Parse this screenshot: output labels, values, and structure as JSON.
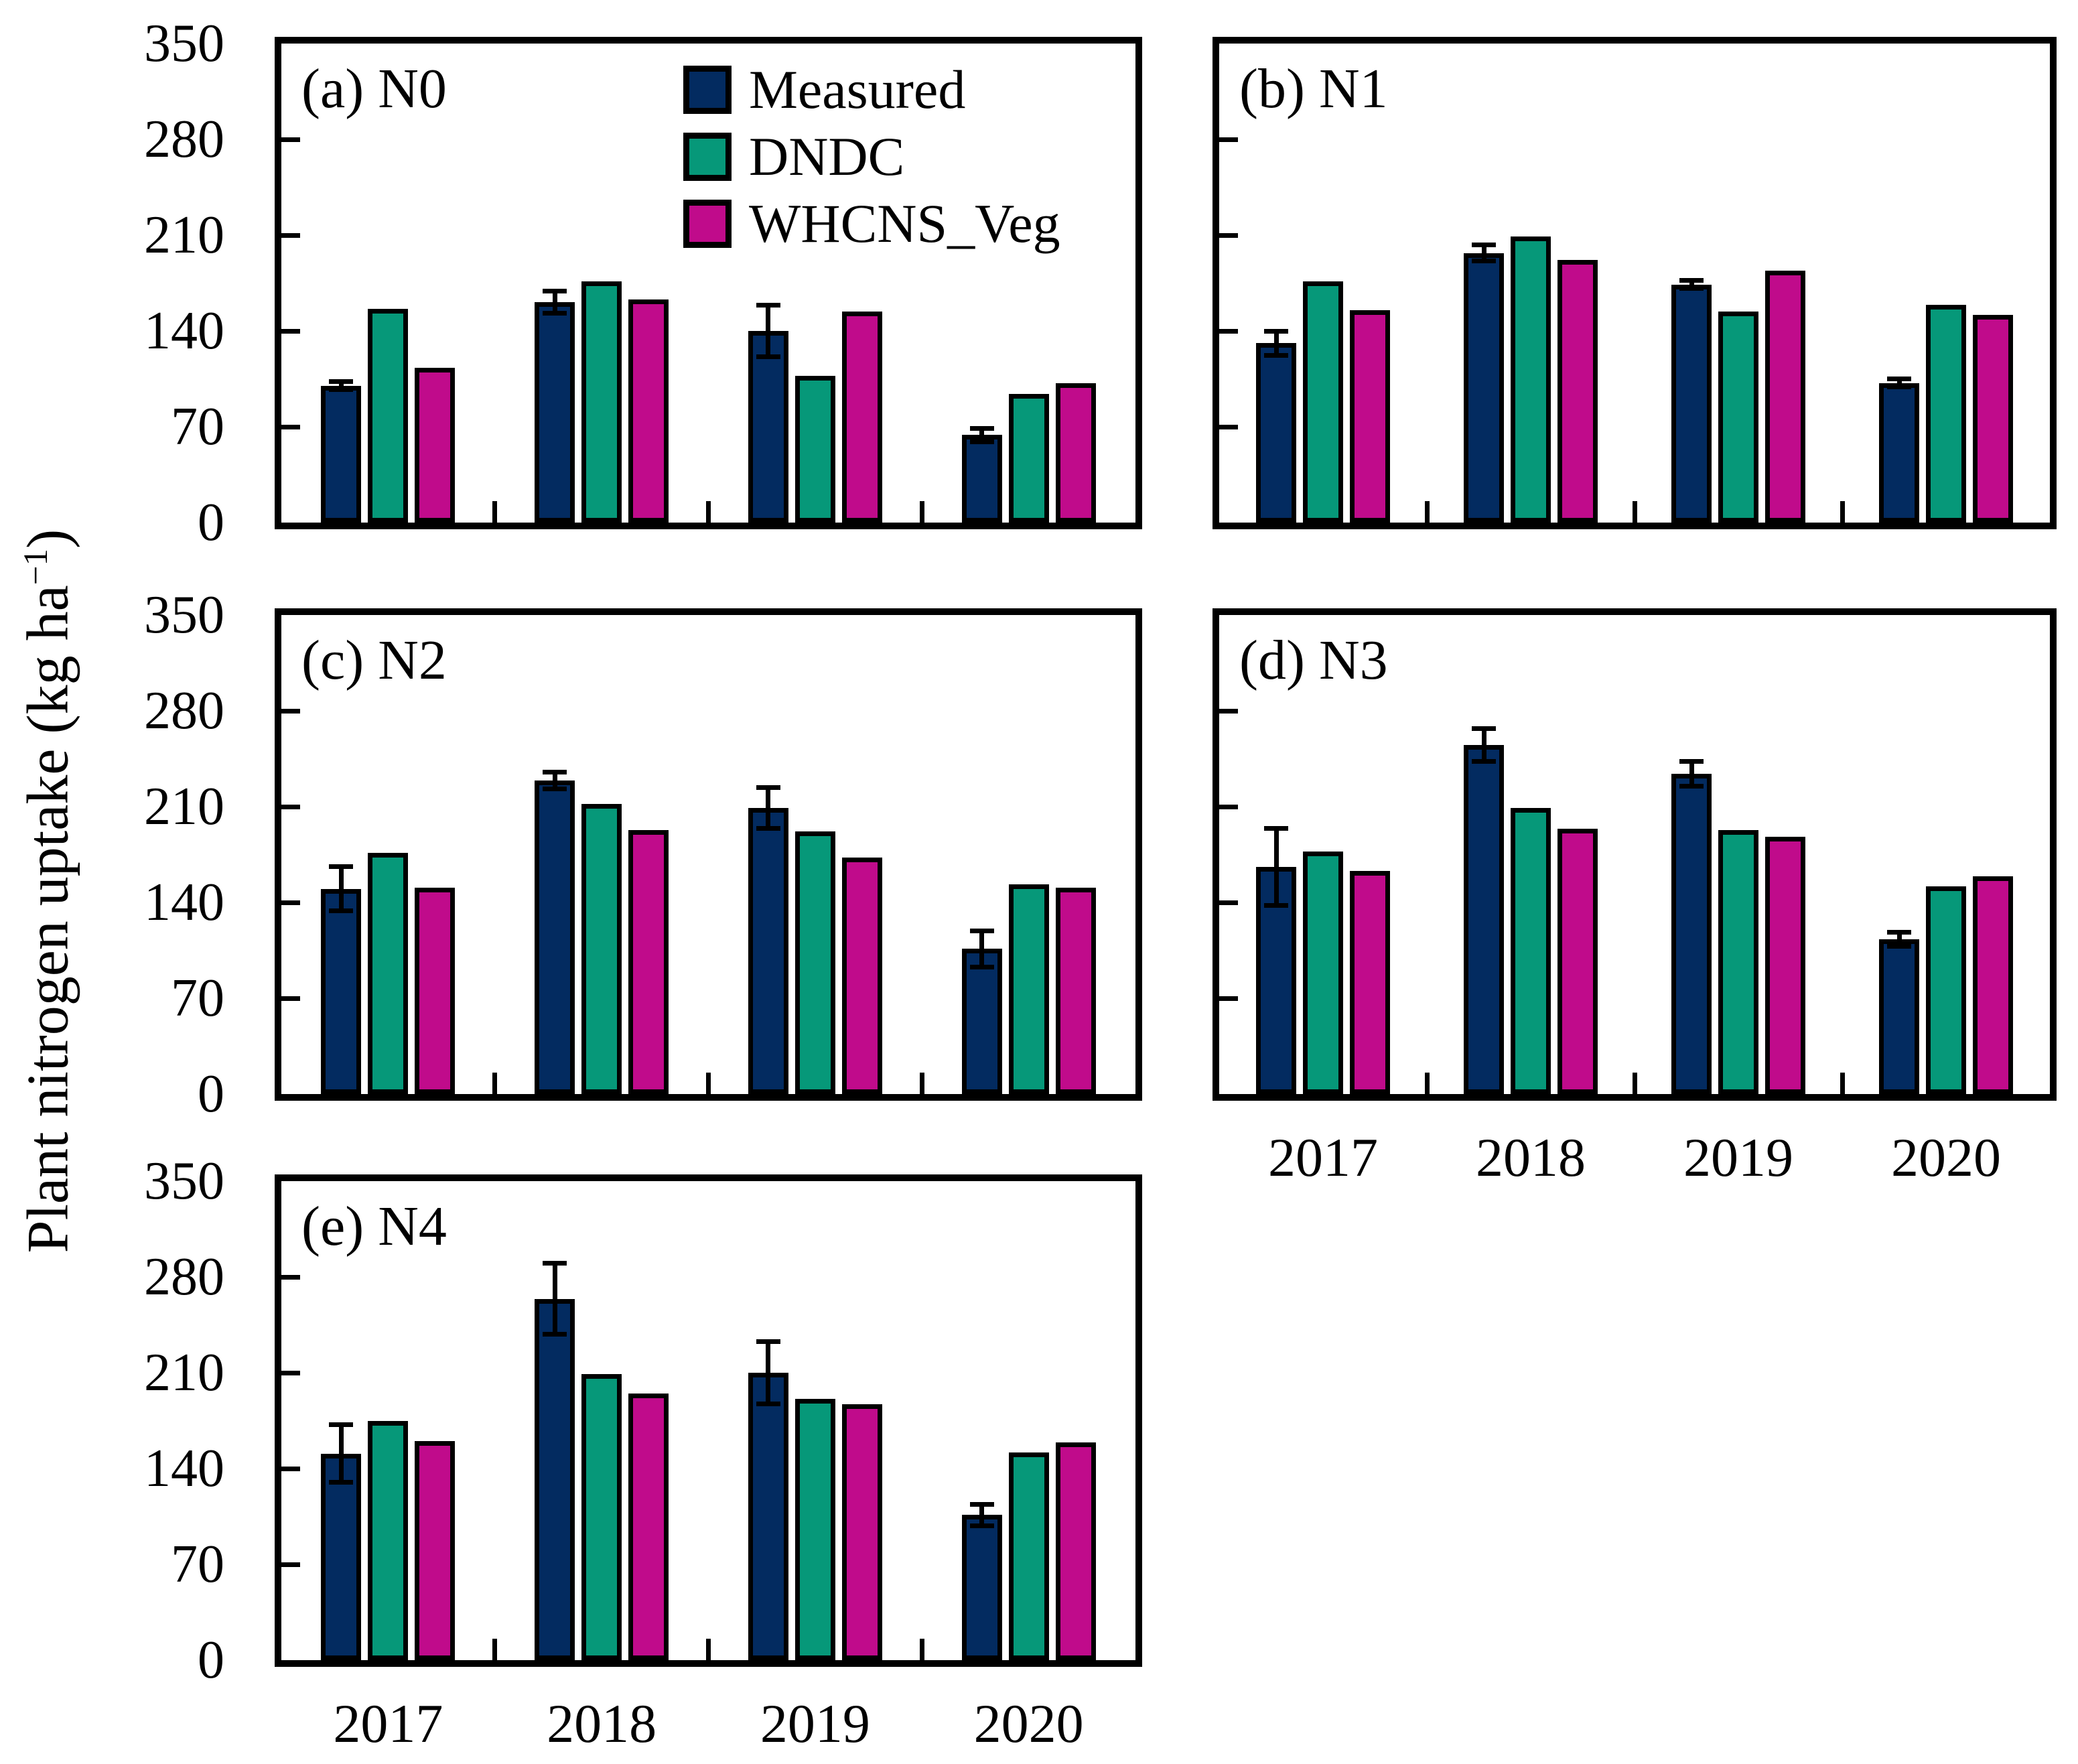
{
  "chart_data": {
    "type": "bar",
    "title": "",
    "categories": [
      "2017",
      "2018",
      "2019",
      "2020"
    ],
    "ylabel": {
      "prefix": "Plant nitrogen uptake (kg ha",
      "sup": "−1",
      "suffix": ")"
    },
    "ylim": [
      0,
      350
    ],
    "yticks": [
      0,
      70,
      140,
      210,
      280,
      350
    ],
    "legend": [
      "Measured",
      "DNDC",
      "WHCNS_Veg"
    ],
    "legend_position": "inside-top-center-panel-a",
    "grid": "off",
    "error_bars_on_series": "Measured",
    "colors": {
      "measured": "#032b60",
      "dndc": "#069879",
      "whcns_veg": "#c00b8b",
      "axis": "#000000",
      "background": "#ffffff"
    },
    "panels": [
      {
        "id": "a",
        "label": "(a) N0",
        "treatment": "N0",
        "series": [
          {
            "name": "Measured",
            "values": [
              100,
              161,
              140,
              64
            ],
            "errors": [
              3,
              8,
              19,
              5
            ]
          },
          {
            "name": "DNDC",
            "values": [
              156,
              176,
              107,
              94
            ]
          },
          {
            "name": "WHCNS_Veg",
            "values": [
              113,
              163,
              154,
              102
            ]
          }
        ]
      },
      {
        "id": "b",
        "label": "(b) N1",
        "treatment": "N1",
        "series": [
          {
            "name": "Measured",
            "values": [
              131,
              197,
              174,
              102
            ],
            "errors": [
              9,
              6,
              3,
              3
            ]
          },
          {
            "name": "DNDC",
            "values": [
              176,
              209,
              154,
              159
            ]
          },
          {
            "name": "WHCNS_Veg",
            "values": [
              155,
              192,
              184,
              152
            ]
          }
        ]
      },
      {
        "id": "c",
        "label": "(c) N2",
        "treatment": "N2",
        "series": [
          {
            "name": "Measured",
            "values": [
              150,
              229,
              209,
              106
            ],
            "errors": [
              16,
              6,
              15,
              13
            ]
          },
          {
            "name": "DNDC",
            "values": [
              176,
              212,
              192,
              153
            ]
          },
          {
            "name": "WHCNS_Veg",
            "values": [
              151,
              193,
              173,
              151
            ]
          }
        ]
      },
      {
        "id": "d",
        "label": "(d) N3",
        "treatment": "N3",
        "series": [
          {
            "name": "Measured",
            "values": [
              166,
              255,
              234,
              113
            ],
            "errors": [
              28,
              12,
              9,
              5
            ]
          },
          {
            "name": "DNDC",
            "values": [
              177,
              209,
              193,
              152
            ]
          },
          {
            "name": "WHCNS_Veg",
            "values": [
              163,
              194,
              188,
              159
            ]
          }
        ]
      },
      {
        "id": "e",
        "label": "(e) N4",
        "treatment": "N4",
        "series": [
          {
            "name": "Measured",
            "values": [
              151,
              264,
              210,
              106
            ],
            "errors": [
              21,
              26,
              23,
              8
            ]
          },
          {
            "name": "DNDC",
            "values": [
              175,
              209,
              191,
              152
            ]
          },
          {
            "name": "WHCNS_Veg",
            "values": [
              160,
              195,
              187,
              159
            ]
          }
        ]
      }
    ]
  }
}
